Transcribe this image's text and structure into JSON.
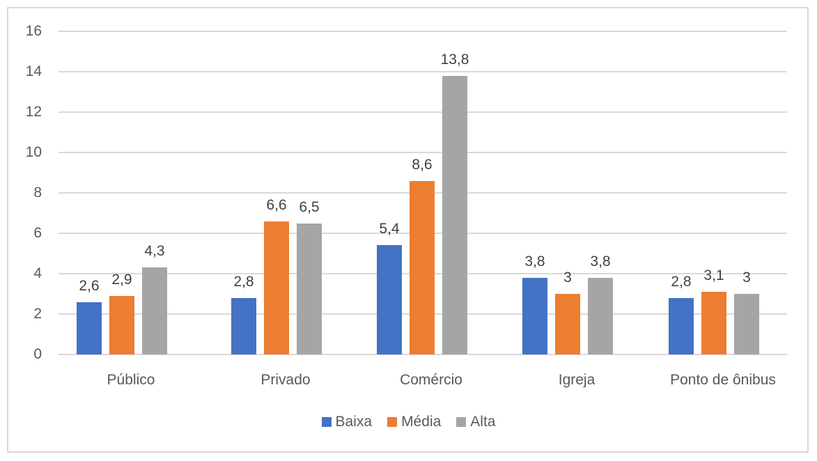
{
  "chart_data": {
    "type": "bar",
    "title": "",
    "xlabel": "",
    "ylabel": "",
    "ylim": [
      0,
      16
    ],
    "yticks": [
      "0",
      "2",
      "4",
      "6",
      "8",
      "10",
      "12",
      "14",
      "16"
    ],
    "grid": true,
    "legend_position": "bottom",
    "categories": [
      "Público",
      "Privado",
      "Comércio",
      "Igreja",
      "Ponto de ônibus"
    ],
    "series": [
      {
        "name": "Baixa",
        "color": "#4472c4",
        "values": [
          2.6,
          2.8,
          5.4,
          3.8,
          2.8
        ],
        "labels": [
          "2,6",
          "2,8",
          "5,4",
          "3,8",
          "2,8"
        ]
      },
      {
        "name": "Média",
        "color": "#ed7d31",
        "values": [
          2.9,
          6.6,
          8.6,
          3.0,
          3.1
        ],
        "labels": [
          "2,9",
          "6,6",
          "8,6",
          "3",
          "3,1"
        ]
      },
      {
        "name": "Alta",
        "color": "#a5a5a5",
        "values": [
          4.3,
          6.5,
          13.8,
          3.8,
          3.0
        ],
        "labels": [
          "4,3",
          "6,5",
          "13,8",
          "3,8",
          "3"
        ]
      }
    ]
  }
}
